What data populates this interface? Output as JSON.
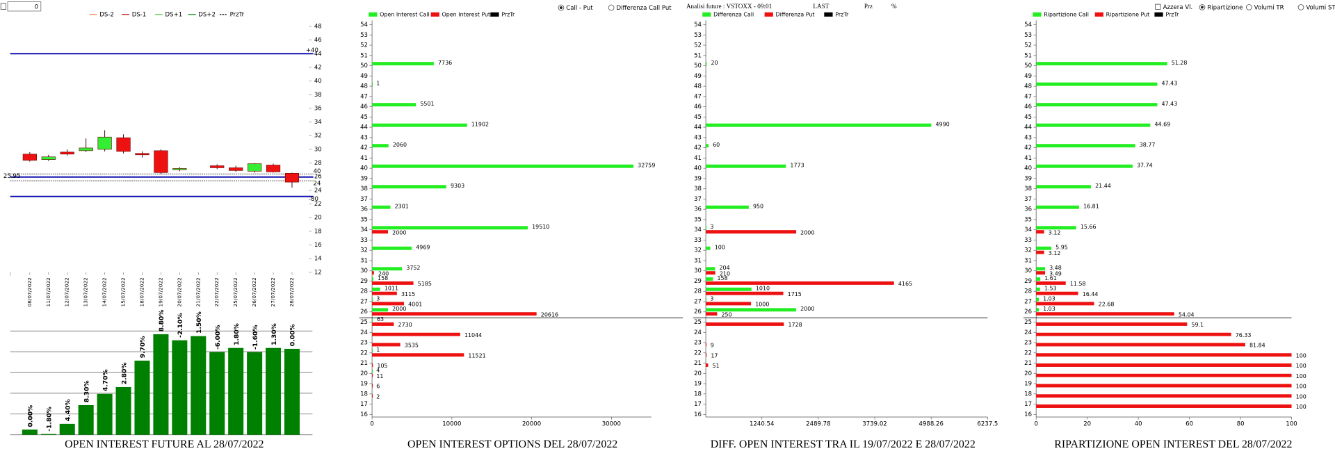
{
  "ui": {
    "input": 0,
    "oi_mode": [
      "Call - Put",
      "Differenza Call Put"
    ],
    "oi_mode_selected": 0,
    "header": [
      "Analisi future : VSTOXX - 09:01",
      "LAST",
      "Prz",
      "%"
    ],
    "reset": "Azzera Vl.",
    "rip_mode": [
      "Ripartizione",
      "Volumi TR",
      "Volumi ST"
    ],
    "rip_mode_selected": 0
  },
  "chart_data": [
    {
      "type": "candlestick",
      "legend": [
        {
          "name": "DS-2",
          "color": "#f08040"
        },
        {
          "name": "DS-1",
          "color": "#c00000"
        },
        {
          "name": "DS+1",
          "color": "#40d040"
        },
        {
          "name": "DS+2",
          "color": "#008000"
        }
      ],
      "price": {
        "name": "PrzTr",
        "color": "#000000",
        "values": [
          26.4,
          25.4
        ],
        "labels": [
          "40",
          "24"
        ]
      },
      "levels": {
        "color": "#1010b0",
        "values": [
          44,
          25.95,
          23.1
        ],
        "labels": [
          "+40",
          "25.95",
          "-80"
        ]
      },
      "categories": [
        "08/07/2022",
        "11/07/2022",
        "12/07/2022",
        "13/07/2022",
        "14/07/2022",
        "15/07/2022",
        "18/07/2022",
        "19/07/2022",
        "20/07/2022",
        "21/07/2022",
        "22/07/2022",
        "25/07/2022",
        "26/07/2022",
        "27/07/2022",
        "28/07/2022"
      ],
      "open": [
        29.3,
        28.5,
        29.6,
        29.8,
        30.0,
        31.7,
        29.4,
        29.8,
        27.0,
        null,
        27.6,
        27.3,
        26.8,
        27.7,
        26.5
      ],
      "high": [
        29.6,
        29.2,
        30.0,
        31.6,
        32.8,
        32.2,
        29.7,
        30.0,
        27.4,
        null,
        27.8,
        27.6,
        28.0,
        27.9,
        26.6
      ],
      "low": [
        28.2,
        28.3,
        29.1,
        29.6,
        29.7,
        29.4,
        28.8,
        26.4,
        26.8,
        null,
        27.1,
        26.7,
        26.6,
        26.6,
        24.4
      ],
      "close": [
        28.4,
        28.9,
        29.3,
        30.2,
        31.8,
        29.7,
        29.2,
        26.6,
        27.2,
        null,
        27.3,
        26.9,
        27.9,
        26.7,
        25.2
      ],
      "up_color": "#33ee33",
      "down_color": "#ee1111",
      "ylim": [
        12,
        48
      ],
      "yticks": [
        12,
        14,
        16,
        18,
        20,
        22,
        24,
        26,
        28,
        30,
        32,
        34,
        36,
        38,
        40,
        42,
        44,
        46,
        48
      ]
    },
    {
      "type": "bar",
      "title": "OPEN INTEREST FUTURE AL 28/07/2022",
      "values": [
        0.25,
        0.04,
        0.53,
        1.43,
        1.97,
        2.3,
        3.57,
        4.84,
        4.55,
        4.75,
        3.98,
        4.18,
        3.98,
        4.18,
        4.14
      ],
      "value_labels": [
        "0.00%",
        "-1.80%",
        "4.40%",
        "8.30%",
        "4.70%",
        "2.80%",
        "9.70%",
        "8.80%",
        "-2.10%",
        "1.50%",
        "-6.00%",
        "1.80%",
        "-1.60%",
        "1.30%",
        "0.00%"
      ],
      "color": "#008000",
      "ylim": [
        0,
        5.2
      ],
      "yticks": [
        1,
        2,
        3,
        4,
        5
      ],
      "grid": true
    },
    {
      "type": "hbar",
      "title": "OPEN INTEREST OPTIONS DEL 28/07/2022",
      "categories": [
        16,
        17,
        18,
        19,
        20,
        21,
        22,
        23,
        24,
        25,
        26,
        27,
        28,
        29,
        30,
        31,
        32,
        33,
        34,
        35,
        36,
        37,
        38,
        39,
        40,
        41,
        42,
        43,
        44,
        45,
        46,
        47,
        48,
        49,
        50,
        51,
        52,
        53,
        54
      ],
      "series": [
        {
          "name": "Open Interest Call",
          "color": "#22ee22",
          "values": [
            null,
            null,
            null,
            null,
            4,
            null,
            1,
            null,
            null,
            63,
            2000,
            3,
            1011,
            158,
            3752,
            null,
            4969,
            null,
            19510,
            null,
            2301,
            null,
            9303,
            null,
            32759,
            null,
            2060,
            null,
            11902,
            null,
            5501,
            null,
            1,
            null,
            7736,
            null,
            null,
            null,
            null
          ]
        },
        {
          "name": "Open Interest Put",
          "color": "#ee1111",
          "values": [
            null,
            null,
            2,
            6,
            11,
            105,
            11521,
            3535,
            11044,
            2730,
            20616,
            4001,
            3115,
            5185,
            240,
            null,
            null,
            null,
            2000,
            null,
            null,
            null,
            null,
            null,
            null,
            null,
            null,
            null,
            null,
            null,
            null,
            null,
            null,
            null,
            null,
            null,
            null,
            null,
            null
          ]
        }
      ],
      "price": {
        "name": "PrzTr",
        "color": "#000000",
        "value": 25.4
      },
      "xlim": [
        0,
        35000
      ],
      "xticks": [
        0,
        10000,
        20000,
        30000
      ]
    },
    {
      "type": "hbar",
      "title": "DIFF. OPEN INTEREST TRA IL 19/07/2022 E 28/07/2022",
      "categories": [
        16,
        17,
        18,
        19,
        20,
        21,
        22,
        23,
        24,
        25,
        26,
        27,
        28,
        29,
        30,
        31,
        32,
        33,
        34,
        35,
        36,
        37,
        38,
        39,
        40,
        41,
        42,
        43,
        44,
        45,
        46,
        47,
        48,
        49,
        50,
        51,
        52,
        53,
        54
      ],
      "series": [
        {
          "name": "Differenza Call",
          "color": "#22ee22",
          "values": [
            null,
            null,
            null,
            null,
            null,
            null,
            null,
            null,
            null,
            null,
            2000,
            3,
            1010,
            158,
            204,
            null,
            100,
            null,
            3,
            null,
            950,
            null,
            null,
            null,
            1773,
            null,
            60,
            null,
            4990,
            null,
            null,
            null,
            null,
            null,
            20,
            null,
            null,
            null,
            null
          ]
        },
        {
          "name": "Differenza Put",
          "color": "#ee1111",
          "values": [
            null,
            null,
            null,
            null,
            null,
            51,
            17,
            9,
            null,
            1728,
            250,
            1000,
            1715,
            4165,
            210,
            null,
            null,
            null,
            2000,
            null,
            null,
            null,
            null,
            null,
            null,
            null,
            null,
            null,
            null,
            null,
            null,
            null,
            null,
            null,
            null,
            null,
            null,
            null,
            null
          ]
        }
      ],
      "price": {
        "name": "PrzTr",
        "color": "#000000",
        "value": 25.4
      },
      "xlim": [
        0,
        6237.5
      ],
      "xticks": [
        1240.54,
        2489.78,
        3739.02,
        4988.26,
        6237.5
      ]
    },
    {
      "type": "hbar",
      "title": "RIPARTIZIONE OPEN INTEREST DEL 28/07/2022",
      "categories": [
        16,
        17,
        18,
        19,
        20,
        21,
        22,
        23,
        24,
        25,
        26,
        27,
        28,
        29,
        30,
        31,
        32,
        33,
        34,
        35,
        36,
        37,
        38,
        39,
        40,
        41,
        42,
        43,
        44,
        45,
        46,
        47,
        48,
        49,
        50,
        51,
        52,
        53,
        54
      ],
      "series": [
        {
          "name": "Ripartizione Call",
          "color": "#22ee22",
          "values": [
            null,
            null,
            null,
            null,
            null,
            null,
            null,
            null,
            null,
            null,
            1.03,
            1.03,
            1.53,
            1.61,
            3.48,
            null,
            5.95,
            null,
            15.66,
            null,
            16.81,
            null,
            21.44,
            null,
            37.74,
            null,
            38.77,
            null,
            44.69,
            null,
            47.43,
            null,
            47.43,
            null,
            51.28,
            null,
            null,
            null,
            null
          ]
        },
        {
          "name": "Ripartizione Put",
          "color": "#ee1111",
          "values": [
            null,
            100,
            100,
            100,
            100,
            100,
            100,
            81.84,
            76.33,
            59.1,
            54.04,
            22.68,
            16.44,
            11.58,
            3.49,
            null,
            3.12,
            null,
            3.12,
            null,
            null,
            null,
            null,
            null,
            null,
            null,
            null,
            null,
            null,
            null,
            null,
            null,
            null,
            null,
            null,
            null,
            null,
            null,
            null
          ]
        }
      ],
      "price": {
        "name": "PrzTr",
        "color": "#000000",
        "value": 25.4
      },
      "xlim": [
        0,
        100
      ],
      "xticks": [
        0,
        20,
        40,
        60,
        80,
        100
      ]
    }
  ]
}
